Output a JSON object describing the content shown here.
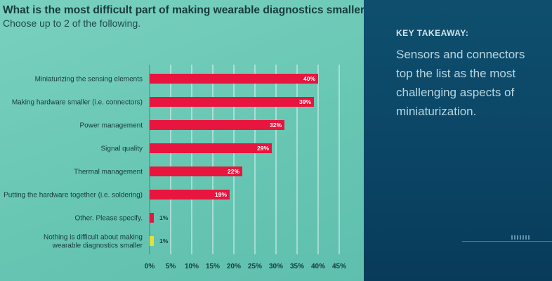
{
  "chart_data": {
    "type": "bar",
    "orientation": "horizontal",
    "title": "What is the most difficult part of making wearable diagnostics smaller?",
    "subtitle": "Choose up to 2 of the following.",
    "categories": [
      [
        "Miniaturizing the sensing elements"
      ],
      [
        "Making hardware smaller (i.e. connectors)"
      ],
      [
        "Power management"
      ],
      [
        "Signal quality"
      ],
      [
        "Thermal management"
      ],
      [
        "Putting the hardware together (i.e. soldering)"
      ],
      [
        "Other. Please specify."
      ],
      [
        "Nothing is difficult about making",
        "wearable diagnostics smaller"
      ]
    ],
    "values": [
      40,
      39,
      32,
      29,
      22,
      19,
      1,
      1
    ],
    "value_labels": [
      "40%",
      "39%",
      "32%",
      "29%",
      "22%",
      "19%",
      "1%",
      "1%"
    ],
    "bar_colors": [
      "#e8153e",
      "#e8153e",
      "#e8153e",
      "#e8153e",
      "#e8153e",
      "#e8153e",
      "#e8153e",
      "#e5e03a"
    ],
    "xlim": [
      0,
      45
    ],
    "xticks": [
      0,
      5,
      10,
      15,
      20,
      25,
      30,
      35,
      40,
      45
    ],
    "xtick_labels": [
      "0%",
      "5%",
      "10%",
      "15%",
      "20%",
      "25%",
      "30%",
      "35%",
      "40%",
      "45%"
    ],
    "grid": true,
    "gridline_color": "#ffffff"
  },
  "takeaway": {
    "heading": "KEY TAKEAWAY:",
    "body": "Sensors and connectors top the list as the most challenging aspects of miniaturization."
  }
}
